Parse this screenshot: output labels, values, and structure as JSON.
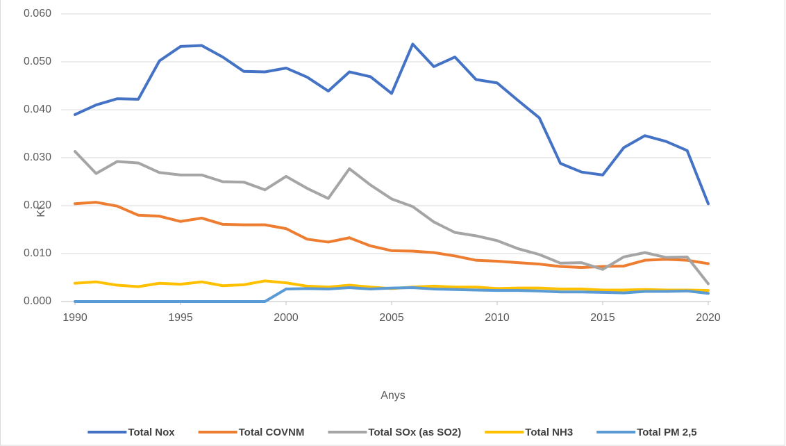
{
  "chart_data": {
    "type": "line",
    "x": [
      1990,
      1991,
      1992,
      1993,
      1994,
      1995,
      1996,
      1997,
      1998,
      1999,
      2000,
      2001,
      2002,
      2003,
      2004,
      2005,
      2006,
      2007,
      2008,
      2009,
      2010,
      2011,
      2012,
      2013,
      2014,
      2015,
      2016,
      2017,
      2018,
      2019,
      2020
    ],
    "xlim": [
      1990,
      2020
    ],
    "xticks": [
      1990,
      1995,
      2000,
      2005,
      2010,
      2015,
      2020
    ],
    "ylim": [
      0,
      0.06
    ],
    "yticks": [
      {
        "value": 0,
        "label": "0.000"
      },
      {
        "value": 0.01,
        "label": "0.010"
      },
      {
        "value": 0.02,
        "label": "0.020"
      },
      {
        "value": 0.03,
        "label": "0.030"
      },
      {
        "value": 0.04,
        "label": "0.040"
      },
      {
        "value": 0.05,
        "label": "0.050"
      },
      {
        "value": 0.06,
        "label": "0.060"
      }
    ],
    "grid": true,
    "legend": "bottom",
    "xlabel": "Anys",
    "ylabel": "Kt",
    "series": [
      {
        "name": "Total Nox",
        "color": "#4472c4",
        "values": [
          0.039,
          0.041,
          0.0423,
          0.0422,
          0.0502,
          0.0532,
          0.0534,
          0.051,
          0.048,
          0.0479,
          0.0487,
          0.0468,
          0.0439,
          0.0479,
          0.0469,
          0.0434,
          0.0537,
          0.049,
          0.051,
          0.0463,
          0.0456,
          0.0419,
          0.0383,
          0.0288,
          0.027,
          0.0264,
          0.0321,
          0.0346,
          0.0334,
          0.0315,
          0.0204
        ]
      },
      {
        "name": "Total COVNM",
        "color": "#ed7d31",
        "values": [
          0.0204,
          0.0207,
          0.0199,
          0.018,
          0.0178,
          0.0167,
          0.0174,
          0.0161,
          0.016,
          0.016,
          0.0152,
          0.013,
          0.0124,
          0.0133,
          0.0116,
          0.0106,
          0.0105,
          0.0102,
          0.0095,
          0.0086,
          0.0084,
          0.0081,
          0.0078,
          0.0073,
          0.0071,
          0.0073,
          0.0074,
          0.0086,
          0.0088,
          0.0086,
          0.0079
        ]
      },
      {
        "name": "Total SOx (as SO2)",
        "color": "#a5a5a5",
        "values": [
          0.0313,
          0.0267,
          0.0292,
          0.0289,
          0.0269,
          0.0264,
          0.0264,
          0.025,
          0.0249,
          0.0233,
          0.0261,
          0.0236,
          0.0215,
          0.0277,
          0.0243,
          0.0214,
          0.0198,
          0.0166,
          0.0144,
          0.0137,
          0.0127,
          0.011,
          0.0098,
          0.008,
          0.0081,
          0.0067,
          0.0093,
          0.0102,
          0.0092,
          0.0093,
          0.0037
        ]
      },
      {
        "name": "Total NH3",
        "color": "#ffc000",
        "values": [
          0.0038,
          0.0041,
          0.0034,
          0.0031,
          0.0038,
          0.0036,
          0.0041,
          0.0033,
          0.0035,
          0.0043,
          0.0039,
          0.0032,
          0.003,
          0.0034,
          0.003,
          0.0027,
          0.003,
          0.0032,
          0.003,
          0.003,
          0.0027,
          0.0028,
          0.0028,
          0.0026,
          0.0026,
          0.0024,
          0.0024,
          0.0025,
          0.0024,
          0.0024,
          0.0023
        ]
      },
      {
        "name": "Total PM 2,5",
        "color": "#5b9bd5",
        "values": [
          0,
          0,
          0,
          0,
          0,
          0,
          0,
          0,
          0,
          0,
          0.0026,
          0.0027,
          0.0026,
          0.0029,
          0.0026,
          0.0028,
          0.0029,
          0.0026,
          0.0025,
          0.0024,
          0.0023,
          0.0023,
          0.0022,
          0.002,
          0.002,
          0.0019,
          0.0018,
          0.0021,
          0.0021,
          0.0022,
          0.0017
        ]
      }
    ]
  }
}
